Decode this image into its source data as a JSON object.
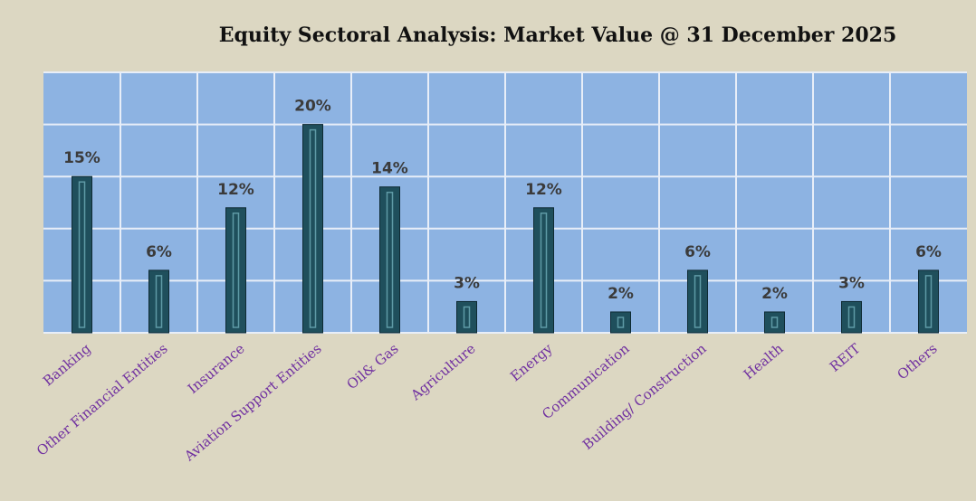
{
  "chart_data": {
    "type": "bar",
    "title": "Equity Sectoral Analysis: Market Value @ 31 December 2025",
    "categories": [
      "Banking",
      "Other Financial Entities",
      "Insurance",
      "Aviation Support  Entities",
      "Oil& Gas",
      "Agriculture",
      "Energy",
      "Communication",
      "Building/ Construction",
      "Health",
      "REIT",
      "Others"
    ],
    "values": [
      15,
      6,
      12,
      20,
      14,
      3,
      12,
      2,
      6,
      2,
      3,
      6
    ],
    "value_labels": [
      "15%",
      "6%",
      "12%",
      "20%",
      "14%",
      "3%",
      "12%",
      "2%",
      "6%",
      "2%",
      "3%",
      "6%"
    ],
    "color": "#1f4f5c",
    "ylim": [
      0,
      25
    ],
    "yticks": [
      0,
      5,
      10,
      15,
      20,
      25
    ],
    "grid": true
  }
}
